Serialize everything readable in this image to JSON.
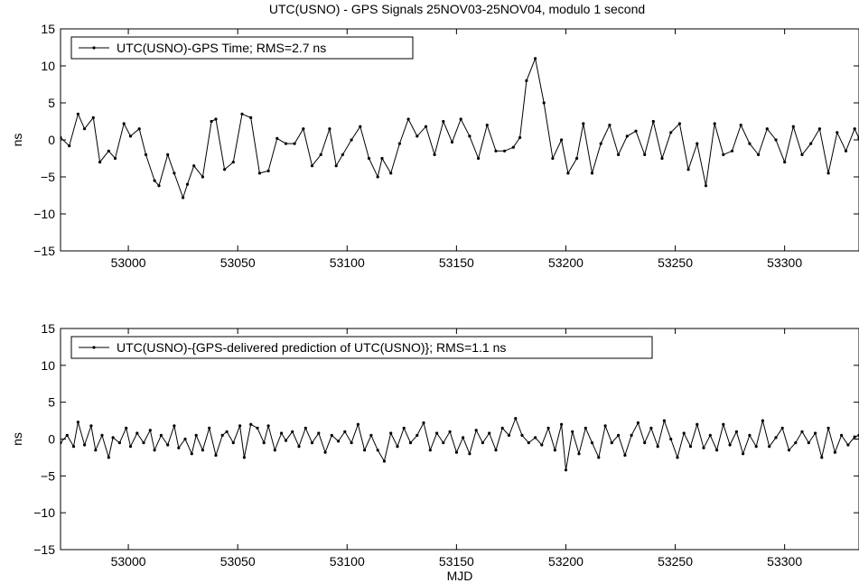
{
  "title": "UTC(USNO) - GPS Signals 25NOV03-25NOV04, modulo 1 second",
  "colors": {
    "line": "#000000",
    "axes": "#000000",
    "background": "#ffffff"
  },
  "chart_data": [
    {
      "type": "line",
      "panel": "top",
      "title": "UTC(USNO) - GPS Signals 25NOV03-25NOV04, modulo 1 second",
      "xlabel": "",
      "ylabel": "ns",
      "xlim": [
        52969,
        53334
      ],
      "ylim": [
        -15,
        15
      ],
      "xticks": [
        53000,
        53050,
        53100,
        53150,
        53200,
        53250,
        53300
      ],
      "yticks": [
        -15,
        -10,
        -5,
        0,
        5,
        10,
        15
      ],
      "grid": false,
      "legend_position": "top-left",
      "marker": "dot",
      "series": [
        {
          "name": "UTC(USNO)-GPS Time; RMS=2.7 ns",
          "x": [
            52969,
            52973,
            52977,
            52980,
            52984,
            52987,
            52991,
            52994,
            52998,
            53001,
            53005,
            53008,
            53012,
            53014,
            53018,
            53021,
            53025,
            53027,
            53030,
            53034,
            53038,
            53040,
            53044,
            53048,
            53052,
            53056,
            53060,
            53064,
            53068,
            53072,
            53076,
            53080,
            53084,
            53088,
            53092,
            53095,
            53098,
            53102,
            53106,
            53110,
            53114,
            53116,
            53120,
            53124,
            53128,
            53132,
            53136,
            53140,
            53144,
            53148,
            53152,
            53156,
            53160,
            53164,
            53168,
            53172,
            53176,
            53179,
            53182,
            53186,
            53190,
            53194,
            53198,
            53201,
            53205,
            53208,
            53212,
            53216,
            53220,
            53224,
            53228,
            53232,
            53236,
            53240,
            53244,
            53248,
            53252,
            53256,
            53260,
            53264,
            53268,
            53272,
            53276,
            53280,
            53284,
            53288,
            53292,
            53296,
            53300,
            53304,
            53308,
            53312,
            53316,
            53320,
            53324,
            53328,
            53332,
            53334
          ],
          "y": [
            0.3,
            -0.8,
            3.5,
            1.5,
            3.0,
            -3.0,
            -1.5,
            -2.5,
            2.2,
            0.5,
            1.5,
            -2.0,
            -5.5,
            -6.2,
            -2.0,
            -4.5,
            -7.8,
            -6.0,
            -3.5,
            -5.0,
            2.5,
            2.8,
            -4.0,
            -3.0,
            3.5,
            3.0,
            -4.5,
            -4.2,
            0.2,
            -0.5,
            -0.5,
            1.5,
            -3.5,
            -2.0,
            1.5,
            -3.5,
            -2.0,
            0.0,
            1.8,
            -2.5,
            -5.0,
            -2.5,
            -4.5,
            -0.5,
            2.8,
            0.5,
            1.8,
            -2.0,
            2.5,
            -0.3,
            2.8,
            0.5,
            -2.5,
            2.0,
            -1.5,
            -1.5,
            -1.0,
            0.3,
            8.0,
            11.0,
            5.0,
            -2.5,
            0.0,
            -4.5,
            -2.5,
            2.2,
            -4.5,
            -0.5,
            2.0,
            -2.0,
            0.5,
            1.2,
            -2.0,
            2.5,
            -2.5,
            1.0,
            2.2,
            -4.0,
            -0.5,
            -6.2,
            2.2,
            -2.0,
            -1.5,
            2.0,
            -0.5,
            -2.0,
            1.5,
            0.0,
            -3.0,
            1.8,
            -2.0,
            -0.5,
            1.5,
            -4.5,
            1.0,
            -1.5,
            1.5,
            0.2
          ]
        }
      ]
    },
    {
      "type": "line",
      "panel": "bottom",
      "title": "",
      "xlabel": "MJD",
      "ylabel": "ns",
      "xlim": [
        52969,
        53334
      ],
      "ylim": [
        -15,
        15
      ],
      "xticks": [
        53000,
        53050,
        53100,
        53150,
        53200,
        53250,
        53300
      ],
      "yticks": [
        -15,
        -10,
        -5,
        0,
        5,
        10,
        15
      ],
      "grid": false,
      "legend_position": "top-left",
      "marker": "dot",
      "series": [
        {
          "name": "UTC(USNO)-{GPS-delivered prediction of UTC(USNO)}; RMS=1.1 ns",
          "x": [
            52969,
            52972,
            52975,
            52977,
            52980,
            52983,
            52985,
            52988,
            52991,
            52993,
            52996,
            52999,
            53001,
            53004,
            53007,
            53010,
            53012,
            53015,
            53018,
            53021,
            53023,
            53026,
            53029,
            53031,
            53034,
            53037,
            53040,
            53043,
            53045,
            53048,
            53051,
            53053,
            53056,
            53059,
            53062,
            53064,
            53067,
            53070,
            53072,
            53075,
            53078,
            53081,
            53084,
            53087,
            53090,
            53093,
            53096,
            53099,
            53102,
            53105,
            53108,
            53111,
            53114,
            53117,
            53120,
            53123,
            53126,
            53129,
            53132,
            53135,
            53138,
            53141,
            53144,
            53147,
            53150,
            53153,
            53156,
            53159,
            53162,
            53165,
            53168,
            53171,
            53174,
            53177,
            53180,
            53183,
            53186,
            53189,
            53192,
            53195,
            53198,
            53200,
            53203,
            53206,
            53209,
            53212,
            53215,
            53218,
            53221,
            53224,
            53227,
            53230,
            53233,
            53236,
            53239,
            53242,
            53245,
            53248,
            53251,
            53254,
            53257,
            53260,
            53263,
            53266,
            53269,
            53272,
            53275,
            53278,
            53281,
            53284,
            53287,
            53290,
            53293,
            53296,
            53299,
            53302,
            53305,
            53308,
            53311,
            53314,
            53317,
            53320,
            53323,
            53326,
            53329,
            53332,
            53334
          ],
          "y": [
            -0.5,
            0.5,
            -1.0,
            2.3,
            -0.8,
            1.8,
            -1.5,
            0.5,
            -2.5,
            0.2,
            -0.5,
            1.5,
            -1.0,
            0.8,
            -0.5,
            1.2,
            -1.5,
            0.5,
            -0.8,
            1.8,
            -1.2,
            0.0,
            -2.0,
            0.5,
            -1.5,
            1.5,
            -2.2,
            0.5,
            1.0,
            -0.5,
            1.8,
            -2.5,
            2.0,
            1.5,
            -0.5,
            1.8,
            -1.5,
            0.8,
            -0.2,
            1.0,
            -1.0,
            1.5,
            -0.5,
            0.8,
            -1.8,
            0.5,
            -0.3,
            1.0,
            -0.5,
            2.0,
            -1.5,
            0.5,
            -1.5,
            -3.0,
            0.8,
            -1.0,
            1.5,
            -0.5,
            0.5,
            2.2,
            -1.5,
            0.8,
            -0.5,
            1.0,
            -1.8,
            0.2,
            -2.0,
            1.2,
            -0.5,
            0.8,
            -1.5,
            1.5,
            0.5,
            2.8,
            0.5,
            -0.5,
            0.2,
            -0.8,
            1.5,
            -1.5,
            2.0,
            -4.2,
            1.0,
            -2.0,
            1.5,
            -0.5,
            -2.5,
            1.8,
            -0.5,
            0.5,
            -2.2,
            0.5,
            2.2,
            -0.5,
            1.5,
            -1.0,
            2.5,
            0.0,
            -2.5,
            0.8,
            -1.0,
            2.0,
            -1.2,
            0.5,
            -1.5,
            2.0,
            -0.8,
            1.0,
            -2.0,
            0.5,
            -1.0,
            2.5,
            -1.0,
            0.2,
            1.5,
            -1.5,
            -0.5,
            1.0,
            -0.5,
            0.8,
            -2.5,
            1.5,
            -1.8,
            0.5,
            -0.8,
            0.3,
            0.5
          ]
        }
      ]
    }
  ]
}
